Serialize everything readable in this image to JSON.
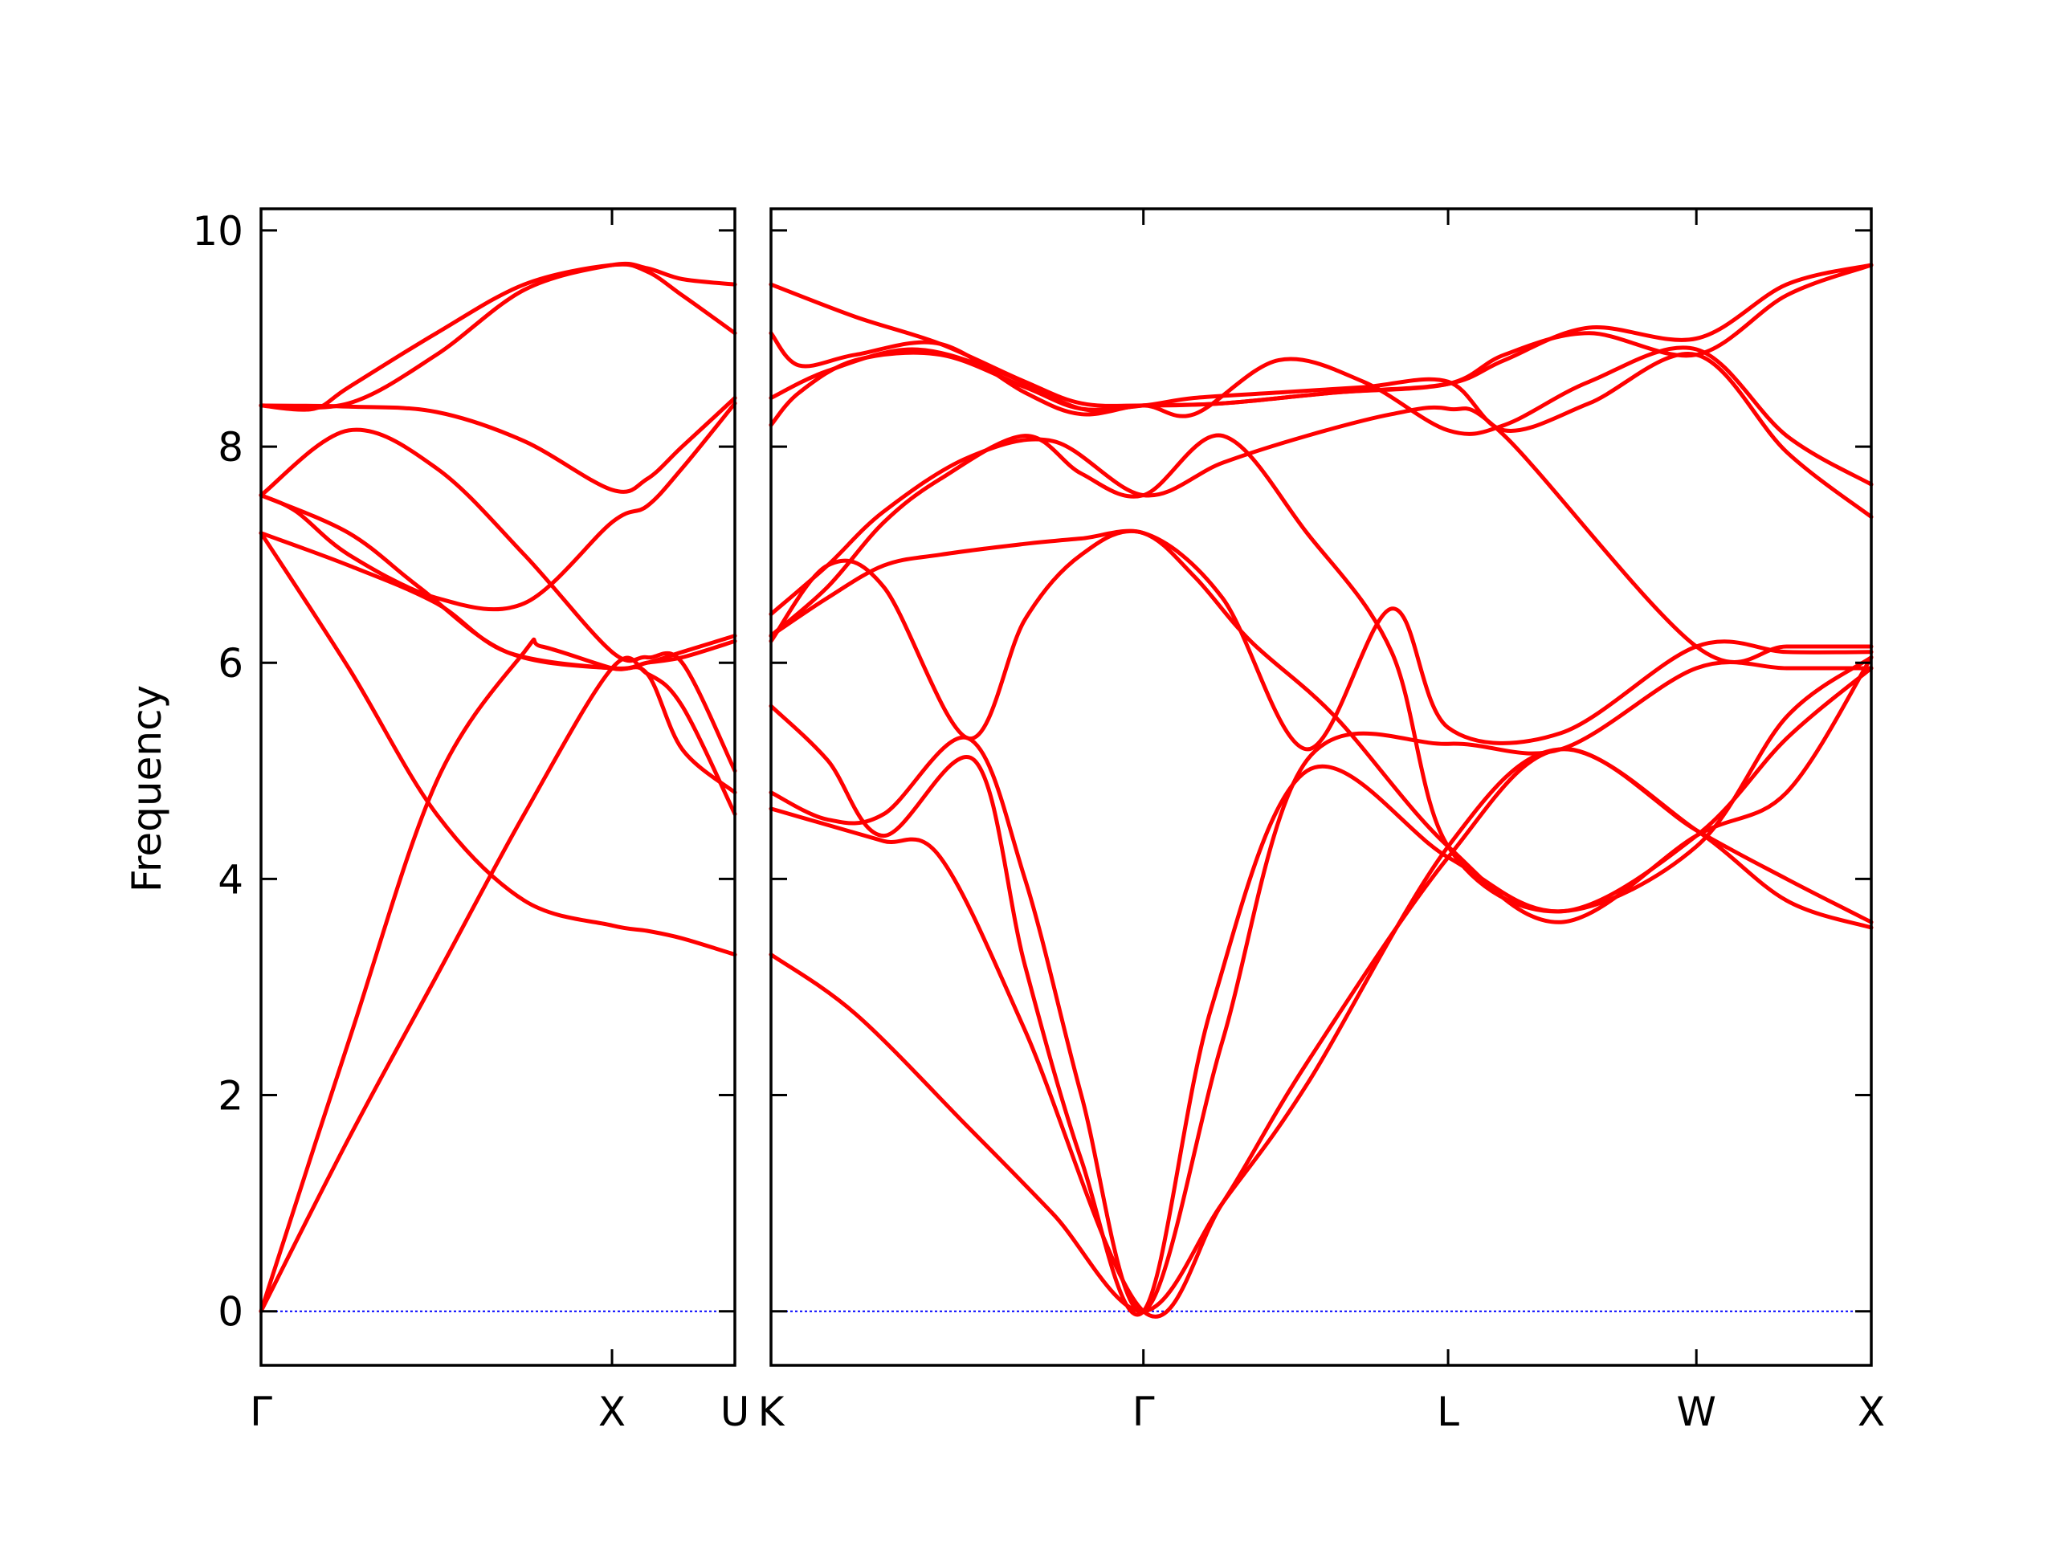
{
  "chart_data": {
    "type": "line",
    "title": "",
    "xlabel": "",
    "ylabel": "Frequency",
    "ylim": [
      -0.5,
      10.2
    ],
    "grid": false,
    "legend": "none",
    "colors": {
      "band": "#ff0000",
      "zero_line": "#0000ff",
      "frame": "#000000"
    },
    "yticks": [
      {
        "value": 0,
        "label": "0"
      },
      {
        "value": 2,
        "label": "2"
      },
      {
        "value": 4,
        "label": "4"
      },
      {
        "value": 6,
        "label": "6"
      },
      {
        "value": 8,
        "label": "8"
      },
      {
        "value": 10,
        "label": "10"
      }
    ],
    "panels": [
      {
        "name": "panel-gamma-x-u",
        "x_range": [
          0,
          1.35
        ],
        "kpoints": [
          {
            "x": 0,
            "label": "Γ"
          },
          {
            "x": 1.0,
            "label": "X"
          },
          {
            "x": 1.35,
            "label": "U"
          }
        ],
        "bands": [
          {
            "x": [
              0,
              0.25,
              0.5,
              0.75,
              1.0,
              1.1,
              1.2,
              1.35
            ],
            "y": [
              0,
              1.6,
              3.1,
              4.6,
              5.95,
              5.9,
              5.6,
              4.6
            ]
          },
          {
            "x": [
              0,
              0.25,
              0.5,
              0.75,
              0.8,
              1.0,
              1.1,
              1.2,
              1.35
            ],
            "y": [
              0,
              2.5,
              4.9,
              6.1,
              6.15,
              5.95,
              5.9,
              5.2,
              4.8
            ]
          },
          {
            "x": [
              0,
              0.25,
              0.5,
              0.75,
              1.0,
              1.1,
              1.2,
              1.35
            ],
            "y": [
              7.2,
              5.95,
              4.6,
              3.8,
              3.57,
              3.52,
              3.45,
              3.3
            ]
          },
          {
            "x": [
              0,
              0.25,
              0.5,
              0.7,
              1.0,
              1.1,
              1.2,
              1.35
            ],
            "y": [
              7.2,
              6.9,
              6.55,
              6.1,
              5.95,
              6.0,
              6.1,
              6.25
            ]
          },
          {
            "x": [
              0,
              0.25,
              0.45,
              0.7,
              1.0,
              1.1,
              1.2,
              1.35
            ],
            "y": [
              7.55,
              7.2,
              6.7,
              6.1,
              5.95,
              6.0,
              6.05,
              6.2
            ]
          },
          {
            "x": [
              0,
              0.1,
              0.25,
              0.5,
              0.75,
              1.0,
              1.1,
              1.2,
              1.35
            ],
            "y": [
              7.55,
              7.4,
              7.0,
              6.6,
              6.55,
              7.3,
              7.45,
              7.8,
              8.4
            ]
          },
          {
            "x": [
              0,
              0.25,
              0.5,
              0.75,
              1.0,
              1.1,
              1.2,
              1.35
            ],
            "y": [
              7.55,
              8.15,
              7.8,
              7.0,
              6.1,
              6.05,
              6.0,
              5.0
            ]
          },
          {
            "x": [
              0,
              0.25,
              0.5,
              0.75,
              1.0,
              1.1,
              1.2,
              1.35
            ],
            "y": [
              8.38,
              8.37,
              8.32,
              8.05,
              7.6,
              7.7,
              8.0,
              8.45
            ]
          },
          {
            "x": [
              0,
              0.15,
              0.25,
              0.5,
              0.75,
              1.0,
              1.1,
              1.2,
              1.35
            ],
            "y": [
              8.38,
              8.35,
              8.55,
              9.05,
              9.5,
              9.68,
              9.62,
              9.4,
              9.05
            ]
          },
          {
            "x": [
              0,
              0.25,
              0.5,
              0.75,
              1.0,
              1.1,
              1.2,
              1.35
            ],
            "y": [
              8.38,
              8.4,
              8.85,
              9.45,
              9.68,
              9.65,
              9.55,
              9.5
            ]
          }
        ]
      },
      {
        "name": "panel-k-gamma-l-w-x",
        "x_range": [
          0,
          1.95
        ],
        "kpoints": [
          {
            "x": 0,
            "label": "K"
          },
          {
            "x": 0.66,
            "label": "Γ"
          },
          {
            "x": 1.2,
            "label": "L"
          },
          {
            "x": 1.64,
            "label": "W"
          },
          {
            "x": 1.95,
            "label": "X"
          }
        ],
        "bands": [
          {
            "x": [
              0,
              0.15,
              0.35,
              0.5,
              0.66,
              0.8,
              0.95,
              1.2,
              1.4,
              1.64,
              1.8,
              1.95
            ],
            "y": [
              3.3,
              2.75,
              1.7,
              0.9,
              0,
              1.0,
              2.1,
              4.3,
              5.2,
              4.45,
              3.8,
              3.55
            ]
          },
          {
            "x": [
              0,
              0.1,
              0.2,
              0.3,
              0.45,
              0.66,
              0.8,
              0.95,
              1.2,
              1.4,
              1.64,
              1.8,
              1.95
            ],
            "y": [
              4.65,
              4.5,
              4.35,
              4.2,
              2.6,
              0,
              1.0,
              2.3,
              4.2,
              5.2,
              4.45,
              4.0,
              3.6
            ]
          },
          {
            "x": [
              0,
              0.1,
              0.2,
              0.36,
              0.45,
              0.55,
              0.66,
              0.78,
              0.95,
              1.2,
              1.4,
              1.64,
              1.8,
              1.95
            ],
            "y": [
              5.6,
              5.1,
              4.4,
              5.1,
              3.2,
              1.4,
              0,
              2.8,
              5.0,
              4.2,
              3.7,
              4.3,
              5.5,
              6.05
            ]
          },
          {
            "x": [
              0,
              0.1,
              0.2,
              0.35,
              0.45,
              0.55,
              0.66,
              0.8,
              0.95,
              1.2,
              1.4,
              1.64,
              1.8,
              1.95
            ],
            "y": [
              4.8,
              4.55,
              4.6,
              5.3,
              4.0,
              2.0,
              0,
              2.5,
              5.1,
              5.25,
              5.2,
              5.95,
              5.95,
              5.95
            ]
          },
          {
            "x": [
              0,
              0.1,
              0.2,
              0.35,
              0.45,
              0.55,
              0.66,
              0.8,
              0.95,
              1.1,
              1.2,
              1.4,
              1.64,
              1.8,
              1.95
            ],
            "y": [
              6.2,
              6.9,
              6.7,
              5.3,
              6.4,
              7.0,
              7.2,
              6.6,
              5.2,
              6.5,
              5.4,
              5.35,
              6.15,
              6.1,
              6.1
            ]
          },
          {
            "x": [
              0,
              0.1,
              0.2,
              0.3,
              0.45,
              0.55,
              0.66,
              0.75,
              0.85,
              1.0,
              1.2,
              1.4,
              1.64,
              1.8,
              1.95
            ],
            "y": [
              6.25,
              6.6,
              6.9,
              7.0,
              7.1,
              7.15,
              7.2,
              6.8,
              6.2,
              5.5,
              4.3,
              3.6,
              4.4,
              4.8,
              6.05
            ]
          },
          {
            "x": [
              0,
              0.1,
              0.2,
              0.3,
              0.45,
              0.55,
              0.66,
              0.8,
              0.95,
              1.1,
              1.2,
              1.4,
              1.64,
              1.8,
              1.95
            ],
            "y": [
              6.25,
              6.7,
              7.3,
              7.7,
              8.1,
              7.75,
              7.55,
              8.1,
              7.2,
              6.1,
              4.3,
              3.7,
              4.4,
              5.3,
              5.95
            ]
          },
          {
            "x": [
              0,
              0.1,
              0.2,
              0.35,
              0.5,
              0.66,
              0.8,
              0.95,
              1.1,
              1.2,
              1.3,
              1.64,
              1.8,
              1.95
            ],
            "y": [
              6.45,
              6.9,
              7.4,
              7.9,
              8.05,
              7.55,
              7.85,
              8.1,
              8.3,
              8.35,
              8.1,
              6.15,
              6.15,
              6.15
            ]
          },
          {
            "x": [
              0,
              0.05,
              0.15,
              0.3,
              0.45,
              0.55,
              0.66,
              0.75,
              0.9,
              1.05,
              1.2,
              1.3,
              1.45,
              1.64,
              1.8,
              1.95
            ],
            "y": [
              8.2,
              8.5,
              8.8,
              8.85,
              8.55,
              8.35,
              8.38,
              8.45,
              8.5,
              8.55,
              8.6,
              8.15,
              8.4,
              8.85,
              7.95,
              7.35
            ]
          },
          {
            "x": [
              0,
              0.05,
              0.15,
              0.3,
              0.45,
              0.55,
              0.66,
              0.75,
              0.9,
              1.05,
              1.2,
              1.3,
              1.45,
              1.64,
              1.8,
              1.95
            ],
            "y": [
              9.05,
              8.75,
              8.85,
              8.95,
              8.5,
              8.3,
              8.38,
              8.3,
              8.8,
              8.6,
              8.15,
              8.2,
              8.6,
              8.9,
              8.1,
              7.65
            ]
          },
          {
            "x": [
              0,
              0.1,
              0.25,
              0.4,
              0.55,
              0.66,
              0.8,
              1.0,
              1.2,
              1.3,
              1.45,
              1.64,
              1.8,
              1.95
            ],
            "y": [
              8.45,
              8.7,
              8.9,
              8.7,
              8.35,
              8.38,
              8.4,
              8.5,
              8.58,
              8.8,
              9.1,
              9.0,
              9.5,
              9.68
            ]
          },
          {
            "x": [
              0,
              0.15,
              0.3,
              0.45,
              0.55,
              0.66,
              0.8,
              1.0,
              1.2,
              1.3,
              1.45,
              1.64,
              1.8,
              1.95
            ],
            "y": [
              9.5,
              9.2,
              8.95,
              8.6,
              8.4,
              8.38,
              8.4,
              8.5,
              8.58,
              8.85,
              9.05,
              8.85,
              9.4,
              9.68
            ]
          }
        ]
      }
    ]
  }
}
